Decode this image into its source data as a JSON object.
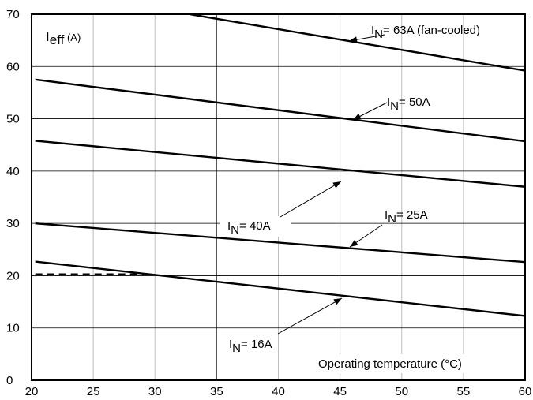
{
  "chart_data": {
    "type": "line",
    "title": "",
    "ylabel": {
      "main": "I",
      "sub": "eff",
      "unit": " (A)"
    },
    "xlabel": "Operating temperature (°C)",
    "xlim": [
      20,
      60
    ],
    "ylim": [
      0,
      70
    ],
    "x_ticks": [
      "20",
      "25",
      "30",
      "35",
      "40",
      "45",
      "50",
      "55",
      "60"
    ],
    "y_ticks": [
      "0",
      "10",
      "20",
      "30",
      "40",
      "50",
      "60",
      "70"
    ],
    "grid": true,
    "series": [
      {
        "name": "63A (fan-cooled)",
        "label_prefix": "I",
        "label_sub": "N",
        "label_rest": "= 63A (fan-cooled)",
        "x": [
          32.8,
          60
        ],
        "y": [
          70,
          59.2
        ]
      },
      {
        "name": "50A",
        "label_prefix": "I",
        "label_sub": "N",
        "label_rest": "= 50A",
        "x": [
          20.3,
          60
        ],
        "y": [
          57.5,
          45.7
        ]
      },
      {
        "name": "40A",
        "label_prefix": "I",
        "label_sub": "N",
        "label_rest": "= 40A",
        "x": [
          20.3,
          60
        ],
        "y": [
          45.8,
          37.0
        ]
      },
      {
        "name": "25A",
        "label_prefix": "I",
        "label_sub": "N",
        "label_rest": "= 25A",
        "x": [
          20.3,
          60
        ],
        "y": [
          30.0,
          22.6
        ]
      },
      {
        "name": "16A",
        "label_prefix": "I",
        "label_sub": "N",
        "label_rest": "= 16A",
        "x": [
          20.3,
          60
        ],
        "y": [
          22.7,
          12.3
        ]
      }
    ],
    "reference_line": {
      "style": "dashed",
      "x": [
        20.3,
        29.5
      ],
      "y": [
        20.3,
        20.3
      ]
    }
  }
}
